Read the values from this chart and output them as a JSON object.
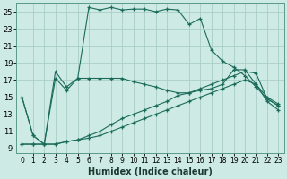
{
  "xlabel": "Humidex (Indice chaleur)",
  "xlim": [
    -0.5,
    23.5
  ],
  "ylim": [
    8.5,
    26.0
  ],
  "yticks": [
    9,
    11,
    13,
    15,
    17,
    19,
    21,
    23,
    25
  ],
  "xticks": [
    0,
    1,
    2,
    3,
    4,
    5,
    6,
    7,
    8,
    9,
    10,
    11,
    12,
    13,
    14,
    15,
    16,
    17,
    18,
    19,
    20,
    21,
    22,
    23
  ],
  "background_color": "#cdeae4",
  "grid_color": "#aacfc8",
  "line_color": "#1a6b5a",
  "lines": [
    {
      "x": [
        0,
        1,
        2,
        3,
        4,
        5,
        6,
        7,
        8,
        9,
        10,
        11,
        12,
        13,
        14,
        15,
        16,
        17,
        18,
        19,
        20,
        21,
        22,
        23
      ],
      "y": [
        15.0,
        10.5,
        9.5,
        18.0,
        16.2,
        17.2,
        25.5,
        25.2,
        25.5,
        25.2,
        25.3,
        25.3,
        25.0,
        25.3,
        25.2,
        23.5,
        24.2,
        20.5,
        19.2,
        18.5,
        17.5,
        16.2,
        14.8,
        14.0
      ]
    },
    {
      "x": [
        0,
        1,
        2,
        3,
        4,
        5,
        6,
        7,
        8,
        9,
        10,
        11,
        12,
        13,
        14,
        15,
        16,
        17,
        18,
        19,
        20,
        21,
        22,
        23
      ],
      "y": [
        15.0,
        10.5,
        9.5,
        17.2,
        15.8,
        17.2,
        17.2,
        17.2,
        17.2,
        17.2,
        16.8,
        16.5,
        16.2,
        15.8,
        15.5,
        15.5,
        15.8,
        16.0,
        16.5,
        18.2,
        18.2,
        16.5,
        15.0,
        14.2
      ]
    },
    {
      "x": [
        0,
        1,
        2,
        3,
        4,
        5,
        6,
        7,
        8,
        9,
        10,
        11,
        12,
        13,
        14,
        15,
        16,
        17,
        18,
        19,
        20,
        21,
        22,
        23
      ],
      "y": [
        9.5,
        9.5,
        9.5,
        9.5,
        9.8,
        10.0,
        10.5,
        11.0,
        11.8,
        12.5,
        13.0,
        13.5,
        14.0,
        14.5,
        15.2,
        15.5,
        16.0,
        16.5,
        17.0,
        17.5,
        18.0,
        17.8,
        14.8,
        14.0
      ]
    },
    {
      "x": [
        0,
        1,
        2,
        3,
        4,
        5,
        6,
        7,
        8,
        9,
        10,
        11,
        12,
        13,
        14,
        15,
        16,
        17,
        18,
        19,
        20,
        21,
        22,
        23
      ],
      "y": [
        9.5,
        9.5,
        9.5,
        9.5,
        9.8,
        10.0,
        10.2,
        10.5,
        11.0,
        11.5,
        12.0,
        12.5,
        13.0,
        13.5,
        14.0,
        14.5,
        15.0,
        15.5,
        16.0,
        16.5,
        17.0,
        16.5,
        14.5,
        13.5
      ]
    }
  ]
}
